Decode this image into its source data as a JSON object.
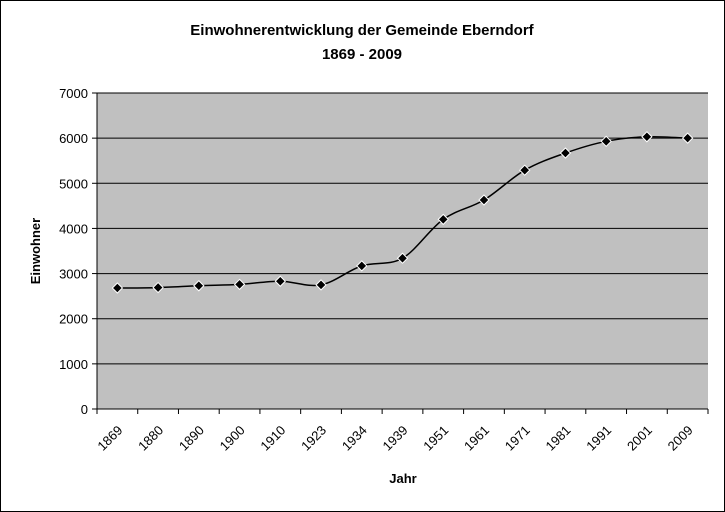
{
  "chart_data": {
    "type": "line",
    "title": "Einwohnerentwicklung der Gemeinde Eberndorf",
    "subtitle": "1869 - 2009",
    "x_label": "Jahr",
    "y_label": "Einwohner",
    "categories": [
      "1869",
      "1880",
      "1890",
      "1900",
      "1910",
      "1923",
      "1934",
      "1939",
      "1951",
      "1961",
      "1971",
      "1981",
      "1991",
      "2001",
      "2009"
    ],
    "values": [
      2680,
      2690,
      2730,
      2760,
      2830,
      2750,
      3170,
      3340,
      4200,
      4630,
      5290,
      5670,
      5930,
      6030,
      6000
    ],
    "color": "#000000",
    "ylim": [
      0,
      7000
    ],
    "yticks": [
      0,
      1000,
      2000,
      3000,
      4000,
      5000,
      6000,
      7000
    ],
    "grid": true
  }
}
